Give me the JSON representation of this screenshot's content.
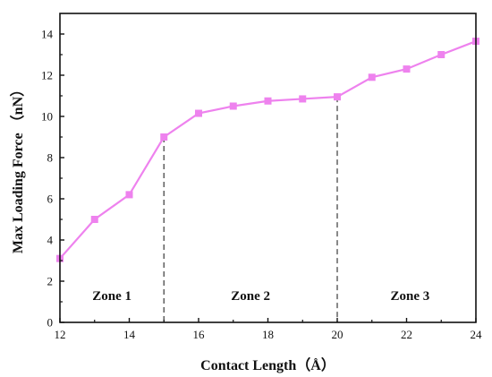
{
  "chart_data": {
    "type": "line",
    "xlabel": "Contact Length（Å）",
    "ylabel": "Max Loading Force （nN）",
    "xlim": [
      12,
      24
    ],
    "ylim": [
      0,
      15
    ],
    "x_ticks": [
      "12",
      "14",
      "16",
      "18",
      "20",
      "22",
      "24"
    ],
    "y_ticks": [
      "0",
      "2",
      "4",
      "6",
      "8",
      "10",
      "12",
      "14"
    ],
    "series": [
      {
        "color": "#ee82ee",
        "marker": "square",
        "x": [
          12,
          13,
          14,
          15,
          16,
          17,
          18,
          19,
          20,
          21,
          22,
          23,
          24
        ],
        "y": [
          3.1,
          5.0,
          6.2,
          9.0,
          10.15,
          10.5,
          10.75,
          10.85,
          10.95,
          11.9,
          12.3,
          13.0,
          13.65
        ]
      }
    ],
    "dividers": [
      {
        "x": 15,
        "style": "dashed"
      },
      {
        "x": 20,
        "style": "dashed"
      }
    ],
    "zones": [
      {
        "label": "Zone 1",
        "x": 13.5,
        "y": 1.3
      },
      {
        "label": "Zone 2",
        "x": 17.5,
        "y": 1.3
      },
      {
        "label": "Zone 3",
        "x": 22.1,
        "y": 1.3
      }
    ]
  }
}
